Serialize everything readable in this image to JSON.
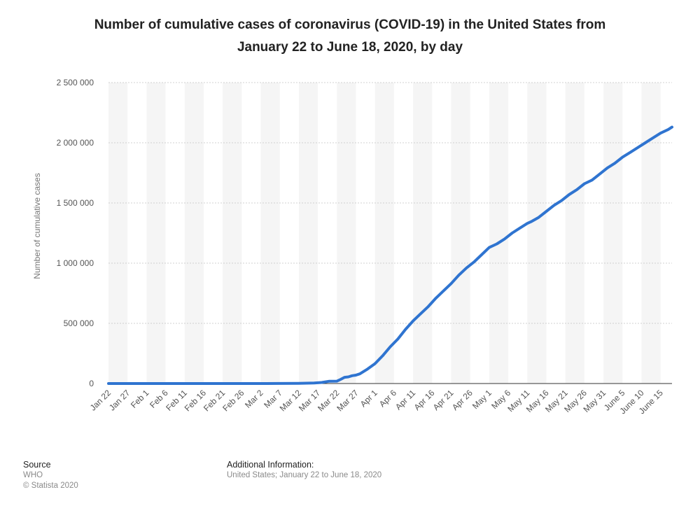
{
  "title_line1": "Number of cumulative cases of coronavirus (COVID-19) in the United States from",
  "title_line2": "January 22 to June 18, 2020, by day",
  "footer": {
    "source_label": "Source",
    "source_name": "WHO",
    "copyright": "© Statista 2020",
    "additional_label": "Additional Information:",
    "additional_text": "United States; January 22 to June 18, 2020"
  },
  "chart_data": {
    "type": "line",
    "title": "Number of cumulative cases of coronavirus (COVID-19) in the United States from January 22 to June 18, 2020, by day",
    "xlabel": "",
    "ylabel": "Number of cumulative cases",
    "ylim": [
      0,
      2500000
    ],
    "yticks": [
      0,
      500000,
      1000000,
      1500000,
      2000000,
      2500000
    ],
    "ytick_labels": [
      "0",
      "500 000",
      "1 000 000",
      "1 500 000",
      "2 000 000",
      "2 500 000"
    ],
    "xtick_labels": [
      "Jan 22",
      "Jan 27",
      "Feb 1",
      "Feb 6",
      "Feb 11",
      "Feb 16",
      "Feb 21",
      "Feb 26",
      "Mar 2",
      "Mar 7",
      "Mar 12",
      "Mar 17",
      "Mar 22",
      "Mar 27",
      "Apr 1",
      "Apr 6",
      "Apr 11",
      "Apr 16",
      "Apr 21",
      "Apr 26",
      "May 1",
      "May 6",
      "May 11",
      "May 16",
      "May 21",
      "May 26",
      "May 31",
      "June 5",
      "June 10",
      "June 15"
    ],
    "grid": true,
    "legend": "none",
    "line_color": "#2f74d0",
    "series": [
      {
        "x": [
          "Jan 22",
          "Jan 27",
          "Feb 1",
          "Feb 6",
          "Feb 11",
          "Feb 16",
          "Feb 21",
          "Feb 26",
          "Mar 2",
          "Mar 7",
          "Mar 12",
          "Mar 14",
          "Mar 16",
          "Mar 18",
          "Mar 20",
          "Mar 22",
          "Mar 23",
          "Mar 24",
          "Mar 25",
          "Mar 26",
          "Mar 27",
          "Mar 28",
          "Mar 30",
          "Apr 1",
          "Apr 3",
          "Apr 5",
          "Apr 7",
          "Apr 9",
          "Apr 11",
          "Apr 13",
          "Apr 15",
          "Apr 17",
          "Apr 19",
          "Apr 21",
          "Apr 23",
          "Apr 25",
          "Apr 27",
          "Apr 29",
          "May 1",
          "May 3",
          "May 5",
          "May 7",
          "May 9",
          "May 11",
          "May 12",
          "May 14",
          "May 16",
          "May 18",
          "May 20",
          "May 22",
          "May 24",
          "May 26",
          "May 28",
          "May 30",
          "June 1",
          "June 3",
          "June 5",
          "June 7",
          "June 9",
          "June 11",
          "June 13",
          "June 15",
          "June 17",
          "June 18"
        ],
        "values": [
          1,
          5,
          8,
          12,
          13,
          15,
          35,
          60,
          100,
          400,
          1600,
          2700,
          4500,
          9000,
          19000,
          20000,
          35000,
          52000,
          55000,
          65000,
          70000,
          80000,
          120000,
          165000,
          230000,
          305000,
          370000,
          450000,
          520000,
          580000,
          640000,
          710000,
          770000,
          830000,
          900000,
          960000,
          1010000,
          1070000,
          1130000,
          1160000,
          1200000,
          1250000,
          1290000,
          1330000,
          1345000,
          1380000,
          1430000,
          1480000,
          1520000,
          1570000,
          1610000,
          1660000,
          1690000,
          1740000,
          1790000,
          1830000,
          1880000,
          1920000,
          1960000,
          2000000,
          2040000,
          2080000,
          2110000,
          2130000
        ]
      }
    ]
  }
}
